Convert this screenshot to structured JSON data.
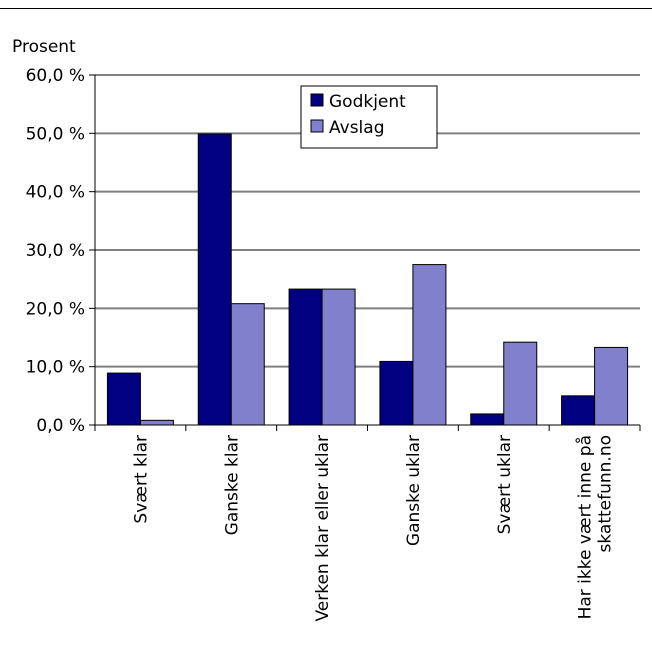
{
  "chart_data": {
    "type": "bar",
    "ylabel": "Prosent",
    "xlabel": "",
    "ylim": [
      0,
      60
    ],
    "y_ticks": [
      "0,0 %",
      "10,0 %",
      "20,0 %",
      "30,0 %",
      "40,0 %",
      "50,0 %",
      "60,0 %"
    ],
    "y_tick_values": [
      0,
      10,
      20,
      30,
      40,
      50,
      60
    ],
    "grid": true,
    "legend_position": "top-center",
    "categories": [
      [
        "Svært klar"
      ],
      [
        "Ganske klar"
      ],
      [
        "Verken klar eller uklar"
      ],
      [
        "Ganske uklar"
      ],
      [
        "Svært uklar"
      ],
      [
        "Har ikke vært inne på",
        "skattefunn.no"
      ]
    ],
    "series": [
      {
        "name": "Godkjent",
        "color": "#000080",
        "values": [
          8.9,
          49.9,
          23.3,
          10.9,
          1.9,
          5.0
        ]
      },
      {
        "name": "Avslag",
        "color": "#8080cc",
        "values": [
          0.8,
          20.8,
          23.3,
          27.5,
          14.2,
          13.3
        ]
      }
    ]
  }
}
